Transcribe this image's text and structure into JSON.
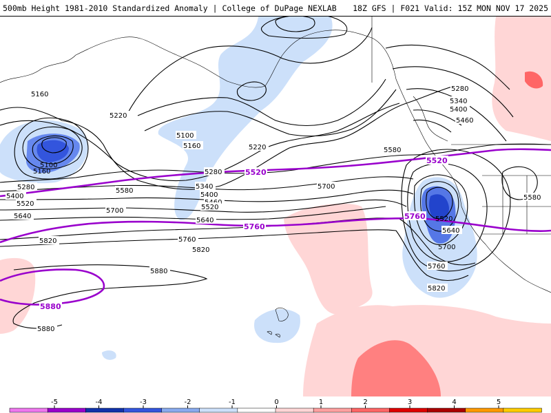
{
  "header": {
    "title_left": "500mb Height 1981-2010 Standardized Anomaly | College of DuPage NEXLAB",
    "title_right": "18Z GFS | F021 Valid: 15Z MON NOV 17 2025"
  },
  "contour_labels": [
    "5160",
    "5220",
    "5280",
    "5340",
    "5400",
    "5460",
    "5520",
    "5580",
    "5640",
    "5700",
    "5760",
    "5820",
    "5880",
    "5100"
  ],
  "purple_labels": [
    "5520",
    "5760",
    "5880"
  ],
  "colorbar": {
    "ticks": [
      "-5",
      "-4",
      "-3",
      "-2",
      "-1",
      "0",
      "1",
      "2",
      "3",
      "4",
      "5"
    ],
    "colors": [
      "#ee77ee",
      "#9900cc",
      "#1133aa",
      "#3355dd",
      "#88aaee",
      "#cce0fa",
      "#ffffff",
      "#ffd6d6",
      "#ff9f9f",
      "#ff6666",
      "#dd0000",
      "#aa0000",
      "#ff9900",
      "#ffcc00"
    ]
  }
}
